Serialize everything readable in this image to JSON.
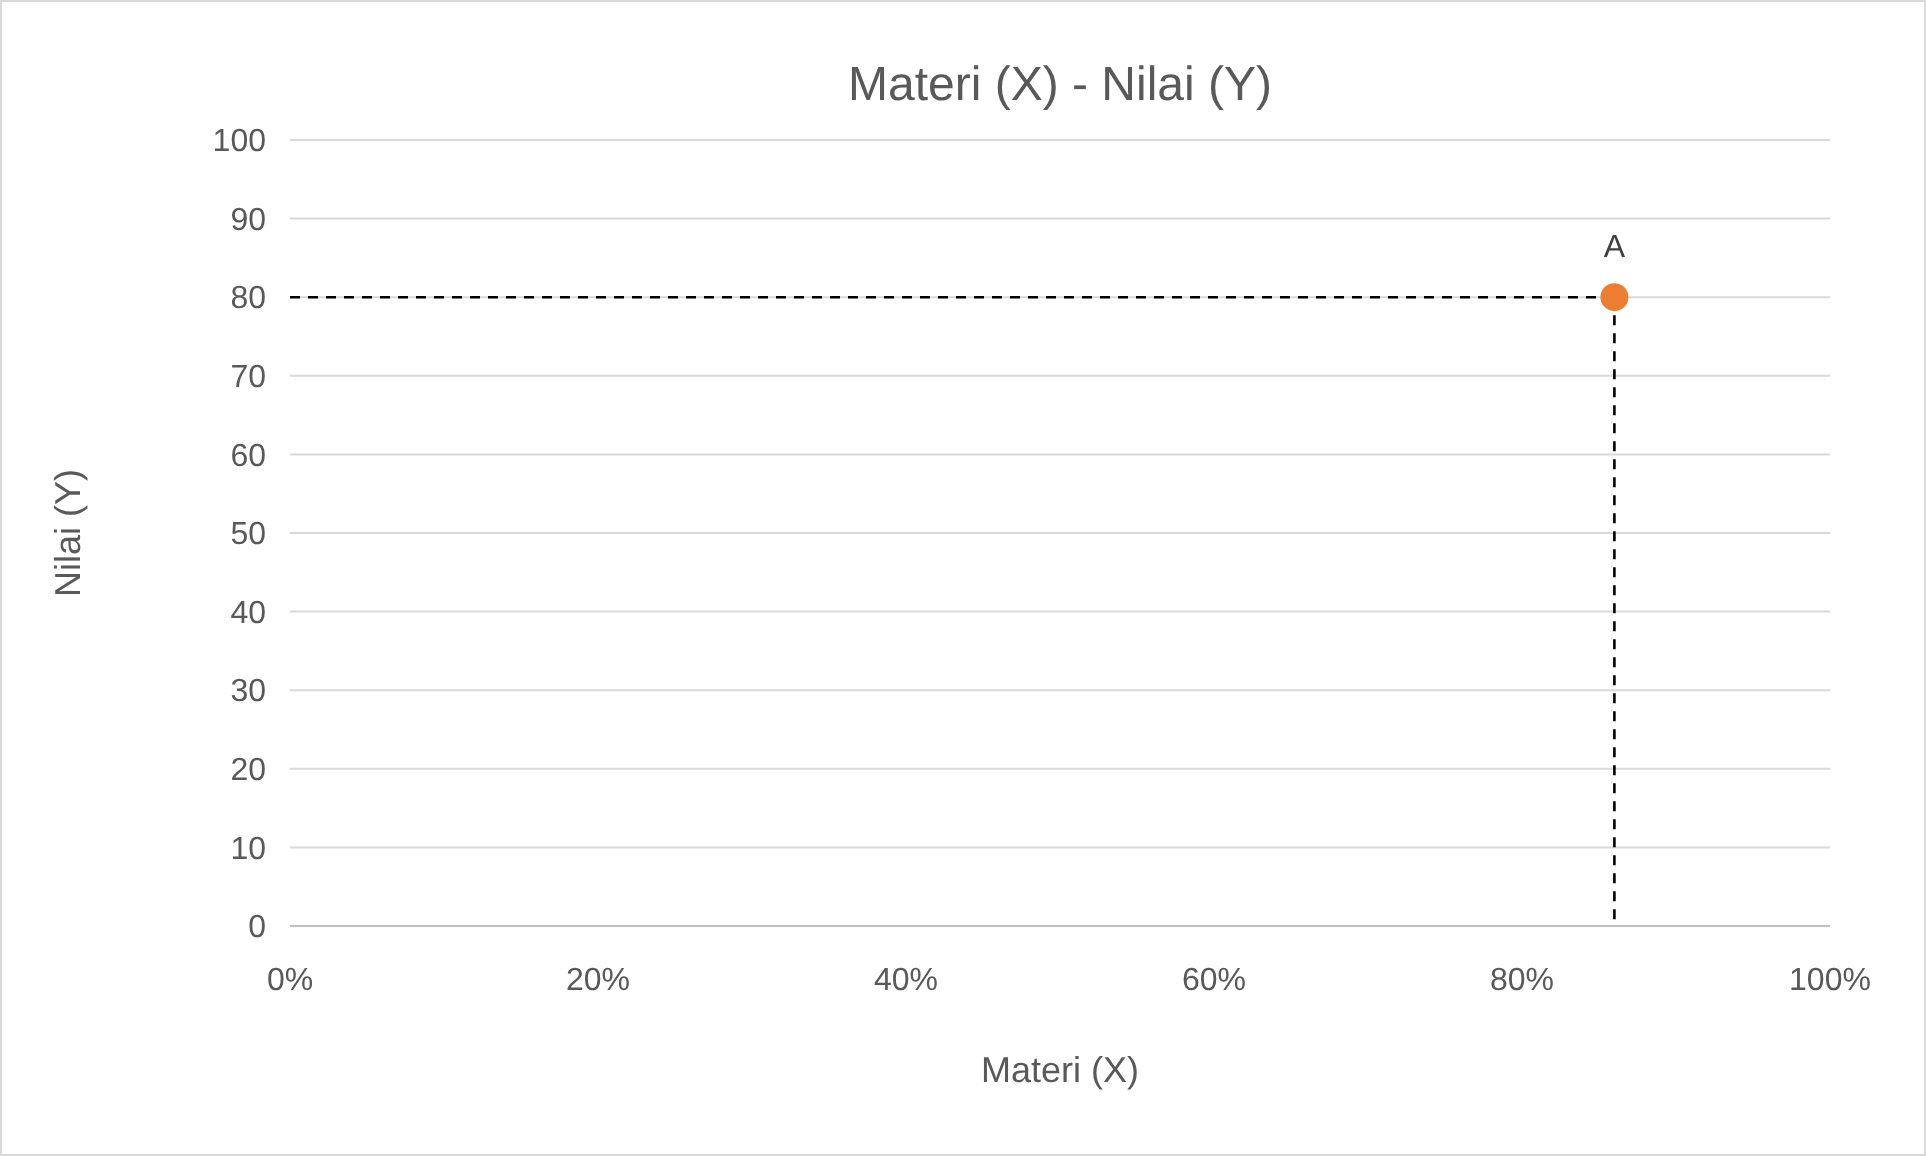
{
  "chart_data": {
    "type": "scatter",
    "title": "Materi (X) - Nilai (Y)",
    "xlabel": "Materi (X)",
    "ylabel": "Nilai (Y)",
    "series": [
      {
        "x": [
          86
        ],
        "values": [
          80
        ],
        "color": "#ed7d31"
      }
    ],
    "annotations": [
      {
        "text": "A",
        "x": 86,
        "y": 80
      }
    ],
    "ref_lines": [
      {
        "axis": "y",
        "value": 80,
        "color": "#000000",
        "line_style": "dashed"
      },
      {
        "axis": "x",
        "value": 86,
        "color": "#000000",
        "line_style": "dashed"
      }
    ],
    "xlim": [
      0,
      100
    ],
    "xticks": [
      {
        "value": 0,
        "label": "0%"
      },
      {
        "value": 20,
        "label": "20%"
      },
      {
        "value": 40,
        "label": "40%"
      },
      {
        "value": 60,
        "label": "60%"
      },
      {
        "value": 80,
        "label": "80%"
      },
      {
        "value": 100,
        "label": "100%"
      }
    ],
    "ylim": [
      0,
      100
    ],
    "yticks": [
      0,
      10,
      20,
      30,
      40,
      50,
      60,
      70,
      80,
      90,
      100
    ],
    "grid": "y",
    "marker": "circle"
  }
}
